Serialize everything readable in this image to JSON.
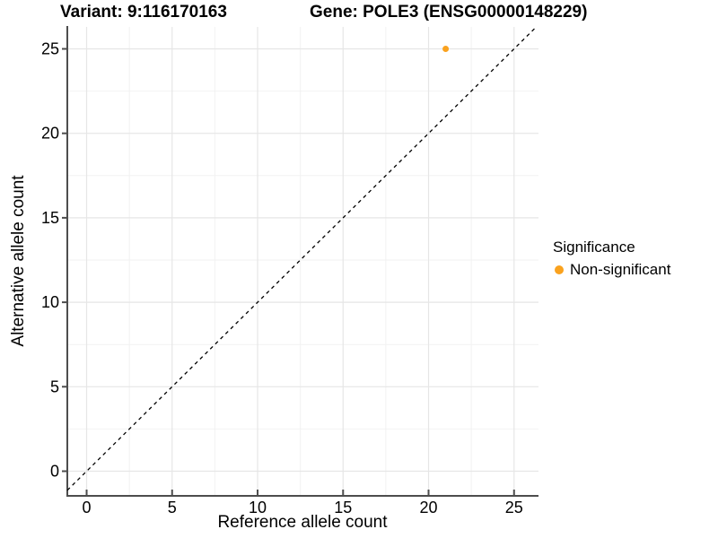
{
  "chart_data": {
    "type": "scatter",
    "title_variant": "Variant: 9:116170163",
    "title_gene": "Gene: POLE3 (ENSG00000148229)",
    "xlabel": "Reference allele count",
    "ylabel": "Alternative allele count",
    "x_ticks": [
      0,
      5,
      10,
      15,
      20,
      25
    ],
    "y_ticks": [
      0,
      5,
      10,
      15,
      20,
      25
    ],
    "x_minor_ticks": [
      2.5,
      7.5,
      12.5,
      17.5,
      22.5
    ],
    "y_minor_ticks": [
      2.5,
      7.5,
      12.5,
      17.5,
      22.5
    ],
    "xlim": [
      -1.13,
      26.43
    ],
    "ylim": [
      -1.46,
      26.3
    ],
    "grid": true,
    "identity_line": {
      "slope": 1,
      "intercept": 0,
      "style": "dashed"
    },
    "series": [
      {
        "name": "Non-significant",
        "color": "#FAA21E",
        "points": [
          {
            "x": 21,
            "y": 25
          }
        ]
      }
    ],
    "legend": {
      "title": "Significance",
      "position": "right",
      "entries": [
        {
          "label": "Non-significant",
          "color": "#FAA21E"
        }
      ]
    },
    "colors": {
      "point": "#FAA21E",
      "grid_major": "#E6E6E6",
      "grid_minor": "#F2F2F2",
      "axis_line": "#4D4D4D",
      "identity_line": "#000000",
      "text": "#000000",
      "background": "#FFFFFF"
    }
  }
}
